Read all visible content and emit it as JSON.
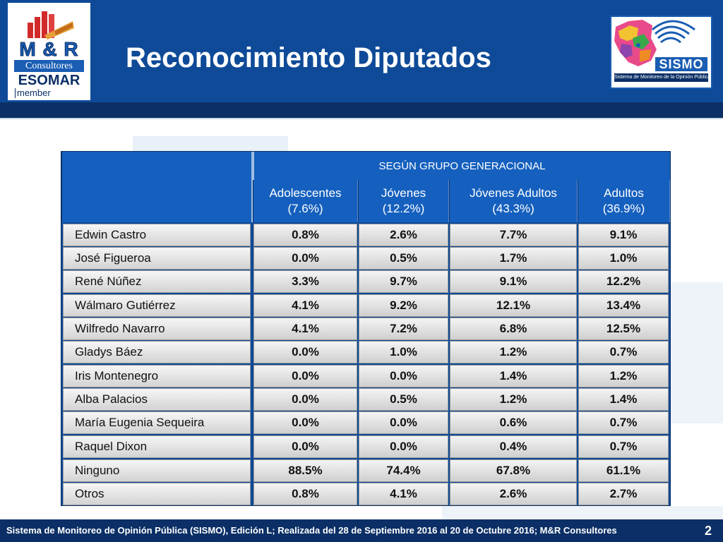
{
  "header": {
    "title": "Reconocimiento Diputados",
    "logo_left": {
      "brand": "M & R",
      "consultores": "Consultores",
      "esomar": "ESOMAR",
      "member": "member"
    },
    "logo_right": {
      "brand": "SISMO",
      "subtitle": "Sistema de Monitoreo de la Opinión Pública"
    }
  },
  "table": {
    "group_title": "SEGÚN GRUPO GENERACIONAL",
    "columns": [
      {
        "label": "Adolescentes",
        "pct": "(7.6%)"
      },
      {
        "label": "Jóvenes",
        "pct": "(12.2%)"
      },
      {
        "label": "Jóvenes Adultos",
        "pct": "(43.3%)"
      },
      {
        "label": "Adultos",
        "pct": "(36.9%)"
      }
    ],
    "rows": [
      {
        "name": "Edwin Castro",
        "values": [
          "0.8%",
          "2.6%",
          "7.7%",
          "9.1%"
        ]
      },
      {
        "name": "José Figueroa",
        "values": [
          "0.0%",
          "0.5%",
          "1.7%",
          "1.0%"
        ]
      },
      {
        "name": "René Núñez",
        "values": [
          "3.3%",
          "9.7%",
          "9.1%",
          "12.2%"
        ]
      },
      {
        "name": "Wálmaro Gutiérrez",
        "values": [
          "4.1%",
          "9.2%",
          "12.1%",
          "13.4%"
        ]
      },
      {
        "name": "Wilfredo Navarro",
        "values": [
          "4.1%",
          "7.2%",
          "6.8%",
          "12.5%"
        ]
      },
      {
        "name": "Gladys Báez",
        "values": [
          "0.0%",
          "1.0%",
          "1.2%",
          "0.7%"
        ]
      },
      {
        "name": "Iris Montenegro",
        "values": [
          "0.0%",
          "0.0%",
          "1.4%",
          "1.2%"
        ]
      },
      {
        "name": "Alba Palacios",
        "values": [
          "0.0%",
          "0.5%",
          "1.2%",
          "1.4%"
        ]
      },
      {
        "name": "María Eugenia Sequeira",
        "values": [
          "0.0%",
          "0.0%",
          "0.6%",
          "0.7%"
        ]
      },
      {
        "name": "Raquel Dixon",
        "values": [
          "0.0%",
          "0.0%",
          "0.4%",
          "0.7%"
        ]
      },
      {
        "name": "Ninguno",
        "values": [
          "88.5%",
          "74.4%",
          "67.8%",
          "61.1%"
        ]
      },
      {
        "name": "Otros",
        "values": [
          "0.8%",
          "4.1%",
          "2.6%",
          "2.7%"
        ]
      }
    ]
  },
  "footer": {
    "text": "Sistema de Monitoreo de Opinión Pública (SISMO), Edición L; Realizada del 28 de Septiembre 2016 al 20 de Octubre 2016; M&R Consultores",
    "page_number": "2"
  },
  "colors": {
    "header_blue": "#0e4a97",
    "dark_blue": "#0b2f66",
    "table_header": "#1560be"
  }
}
